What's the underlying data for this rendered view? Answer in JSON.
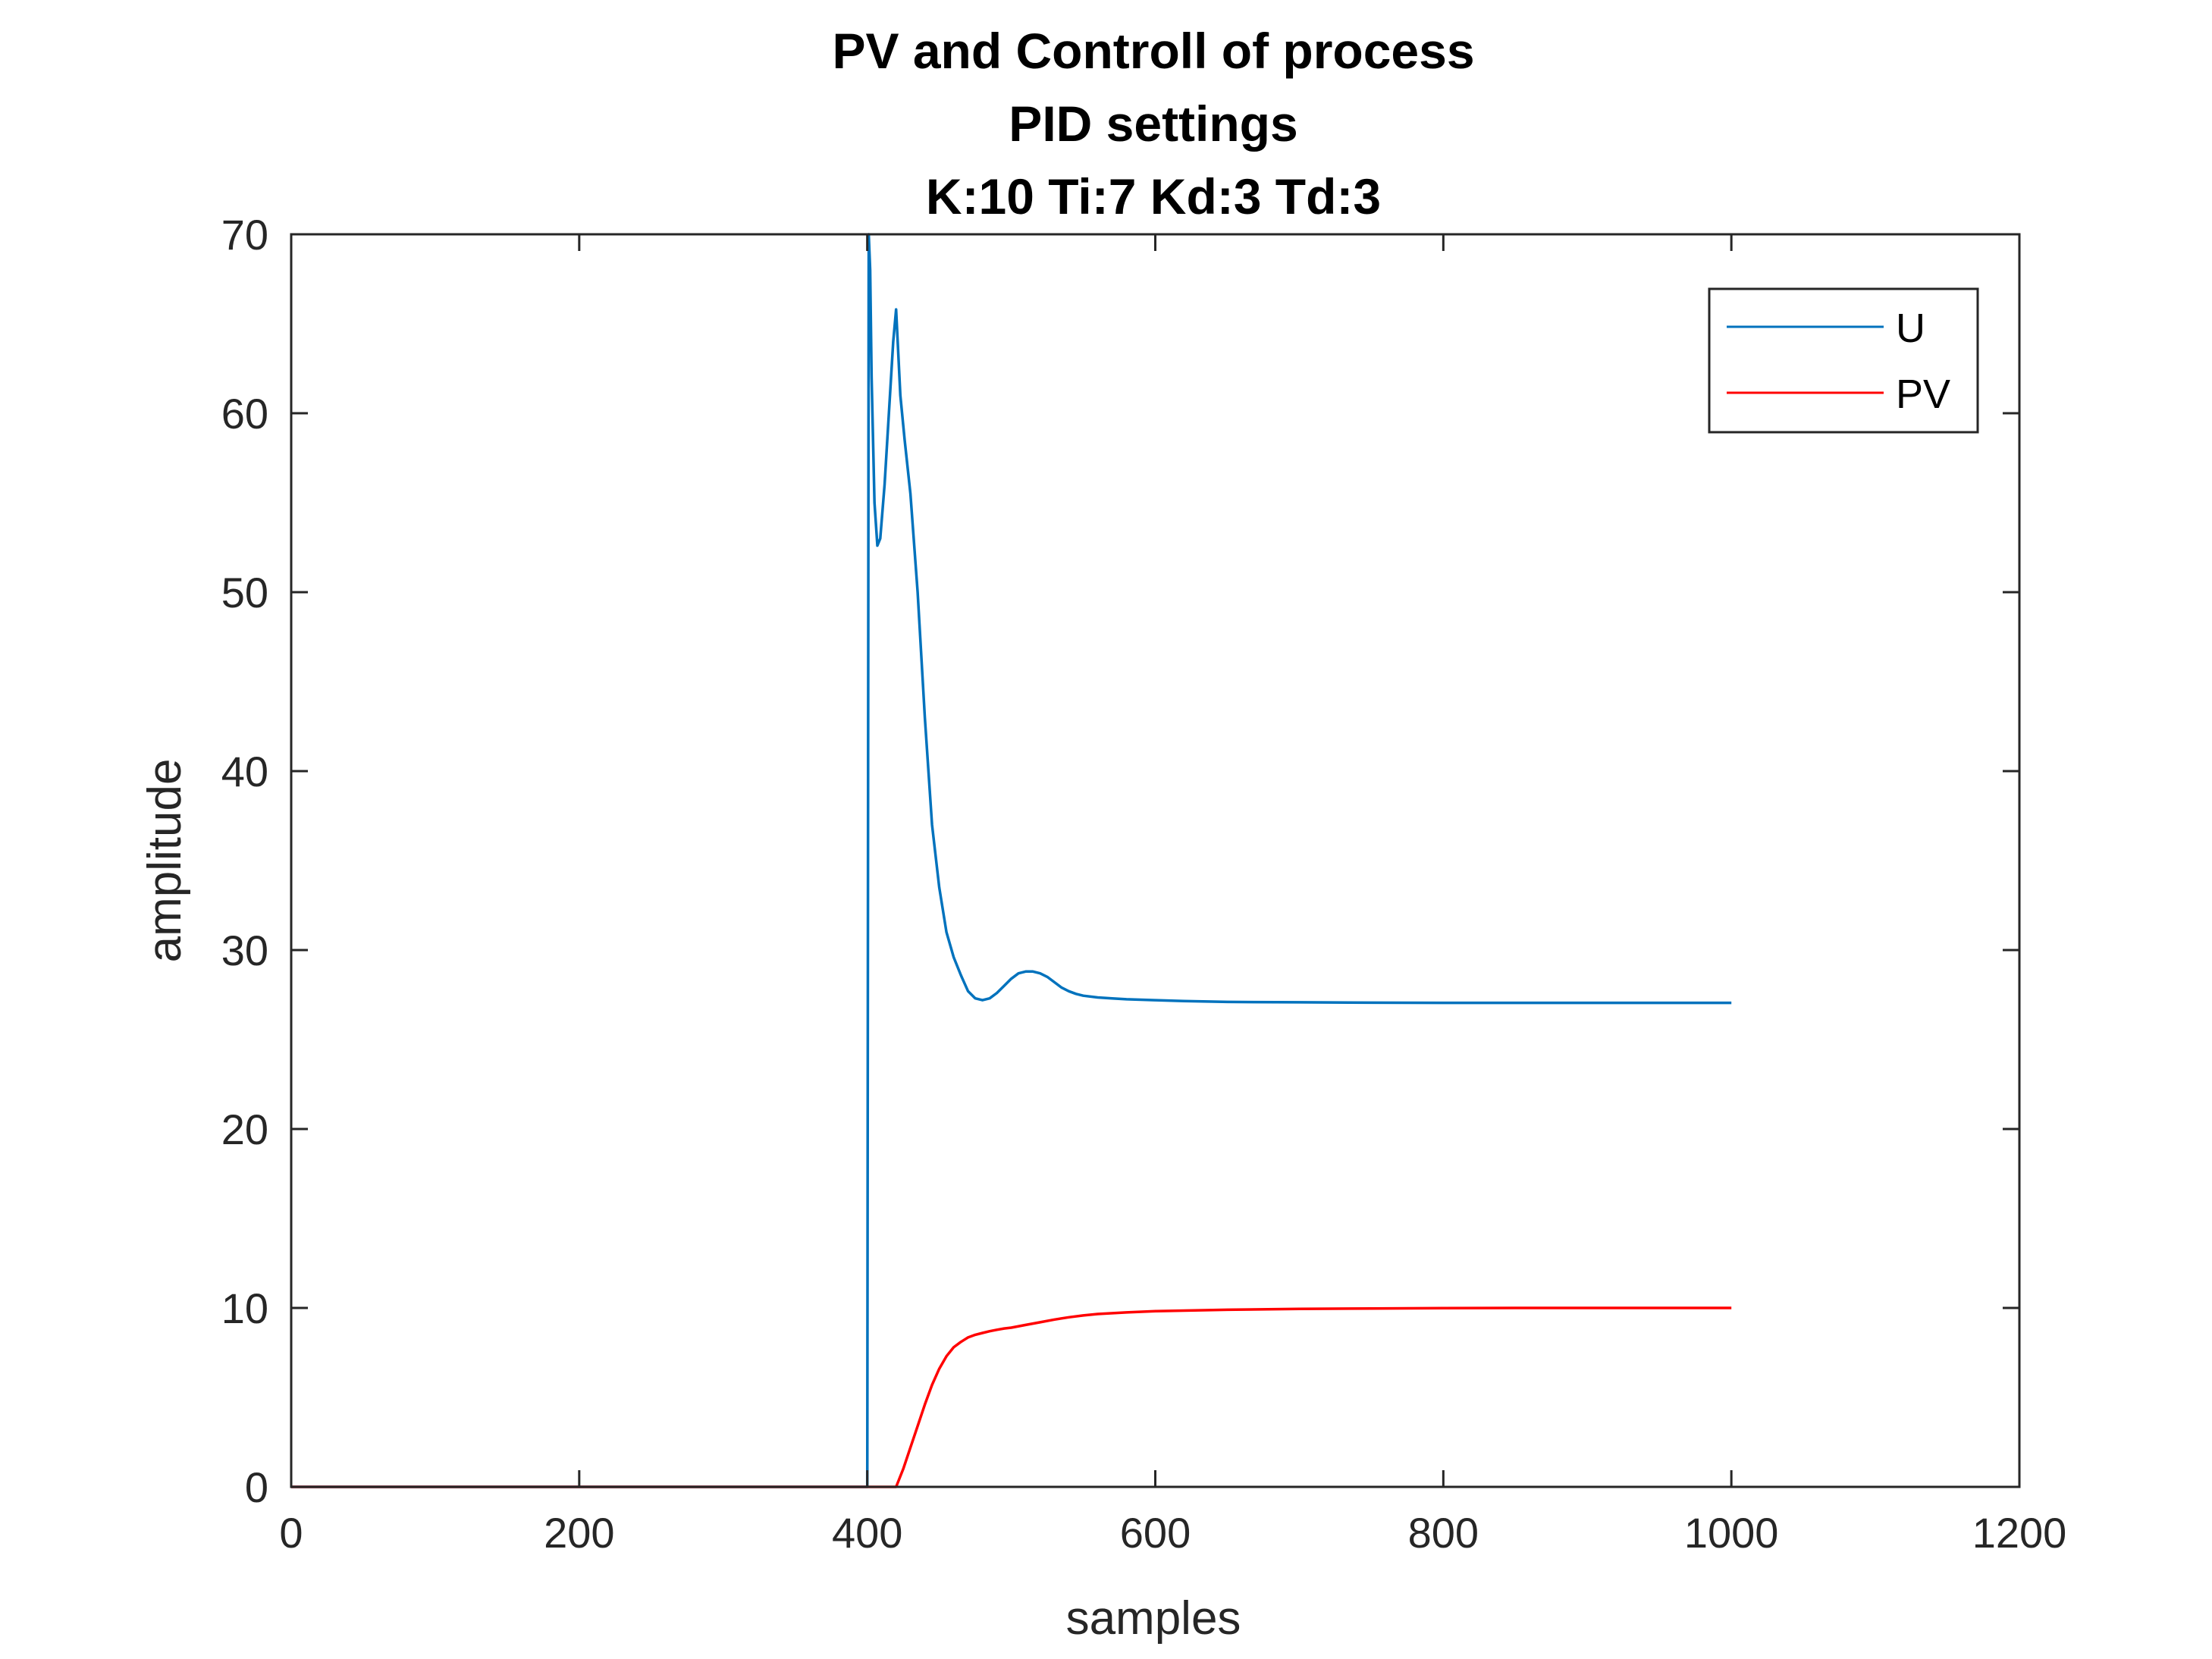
{
  "chart_data": {
    "type": "line",
    "title": [
      "PV and Controll of process",
      "PID settings",
      "K:10  Ti:7  Kd:3  Td:3"
    ],
    "xlabel": "samples",
    "ylabel": "amplitude",
    "xlim": [
      0,
      1200
    ],
    "ylim": [
      0,
      70
    ],
    "xticks": [
      0,
      200,
      400,
      600,
      800,
      1000,
      1200
    ],
    "yticks": [
      0,
      10,
      20,
      30,
      40,
      50,
      60,
      70
    ],
    "grid": false,
    "legend_position": "top-right",
    "series": [
      {
        "name": "U",
        "color": "#0072BD",
        "x": [
          0,
          399,
          400,
          401,
          402,
          403,
          405,
          407,
          409,
          412,
          415,
          418,
          420,
          423,
          426,
          430,
          435,
          440,
          445,
          450,
          455,
          460,
          465,
          470,
          475,
          480,
          485,
          490,
          495,
          500,
          505,
          510,
          515,
          520,
          525,
          530,
          535,
          540,
          545,
          550,
          560,
          570,
          580,
          600,
          620,
          650,
          700,
          750,
          800,
          850,
          900,
          950,
          1000
        ],
        "y": [
          0,
          0,
          0,
          70,
          68,
          62,
          55,
          52.6,
          53,
          56,
          60,
          64,
          65.8,
          61,
          58.5,
          55.5,
          50,
          43,
          37,
          33.5,
          31,
          29.6,
          28.6,
          27.7,
          27.3,
          27.2,
          27.3,
          27.6,
          28,
          28.4,
          28.7,
          28.8,
          28.8,
          28.7,
          28.5,
          28.2,
          27.9,
          27.7,
          27.55,
          27.45,
          27.35,
          27.3,
          27.25,
          27.2,
          27.15,
          27.1,
          27.08,
          27.06,
          27.05,
          27.05,
          27.05,
          27.05,
          27.05
        ]
      },
      {
        "name": "PV",
        "color": "#FF0000",
        "x": [
          0,
          420,
          425,
          430,
          435,
          440,
          445,
          450,
          455,
          460,
          465,
          470,
          475,
          480,
          485,
          490,
          495,
          500,
          510,
          520,
          530,
          540,
          550,
          560,
          580,
          600,
          650,
          700,
          750,
          800,
          850,
          900,
          950,
          1000
        ],
        "y": [
          0,
          0,
          1,
          2.2,
          3.4,
          4.6,
          5.7,
          6.6,
          7.3,
          7.8,
          8.1,
          8.35,
          8.5,
          8.6,
          8.7,
          8.78,
          8.85,
          8.9,
          9.05,
          9.2,
          9.35,
          9.48,
          9.58,
          9.66,
          9.75,
          9.82,
          9.9,
          9.95,
          9.97,
          9.99,
          10,
          10,
          10,
          10
        ]
      }
    ]
  }
}
